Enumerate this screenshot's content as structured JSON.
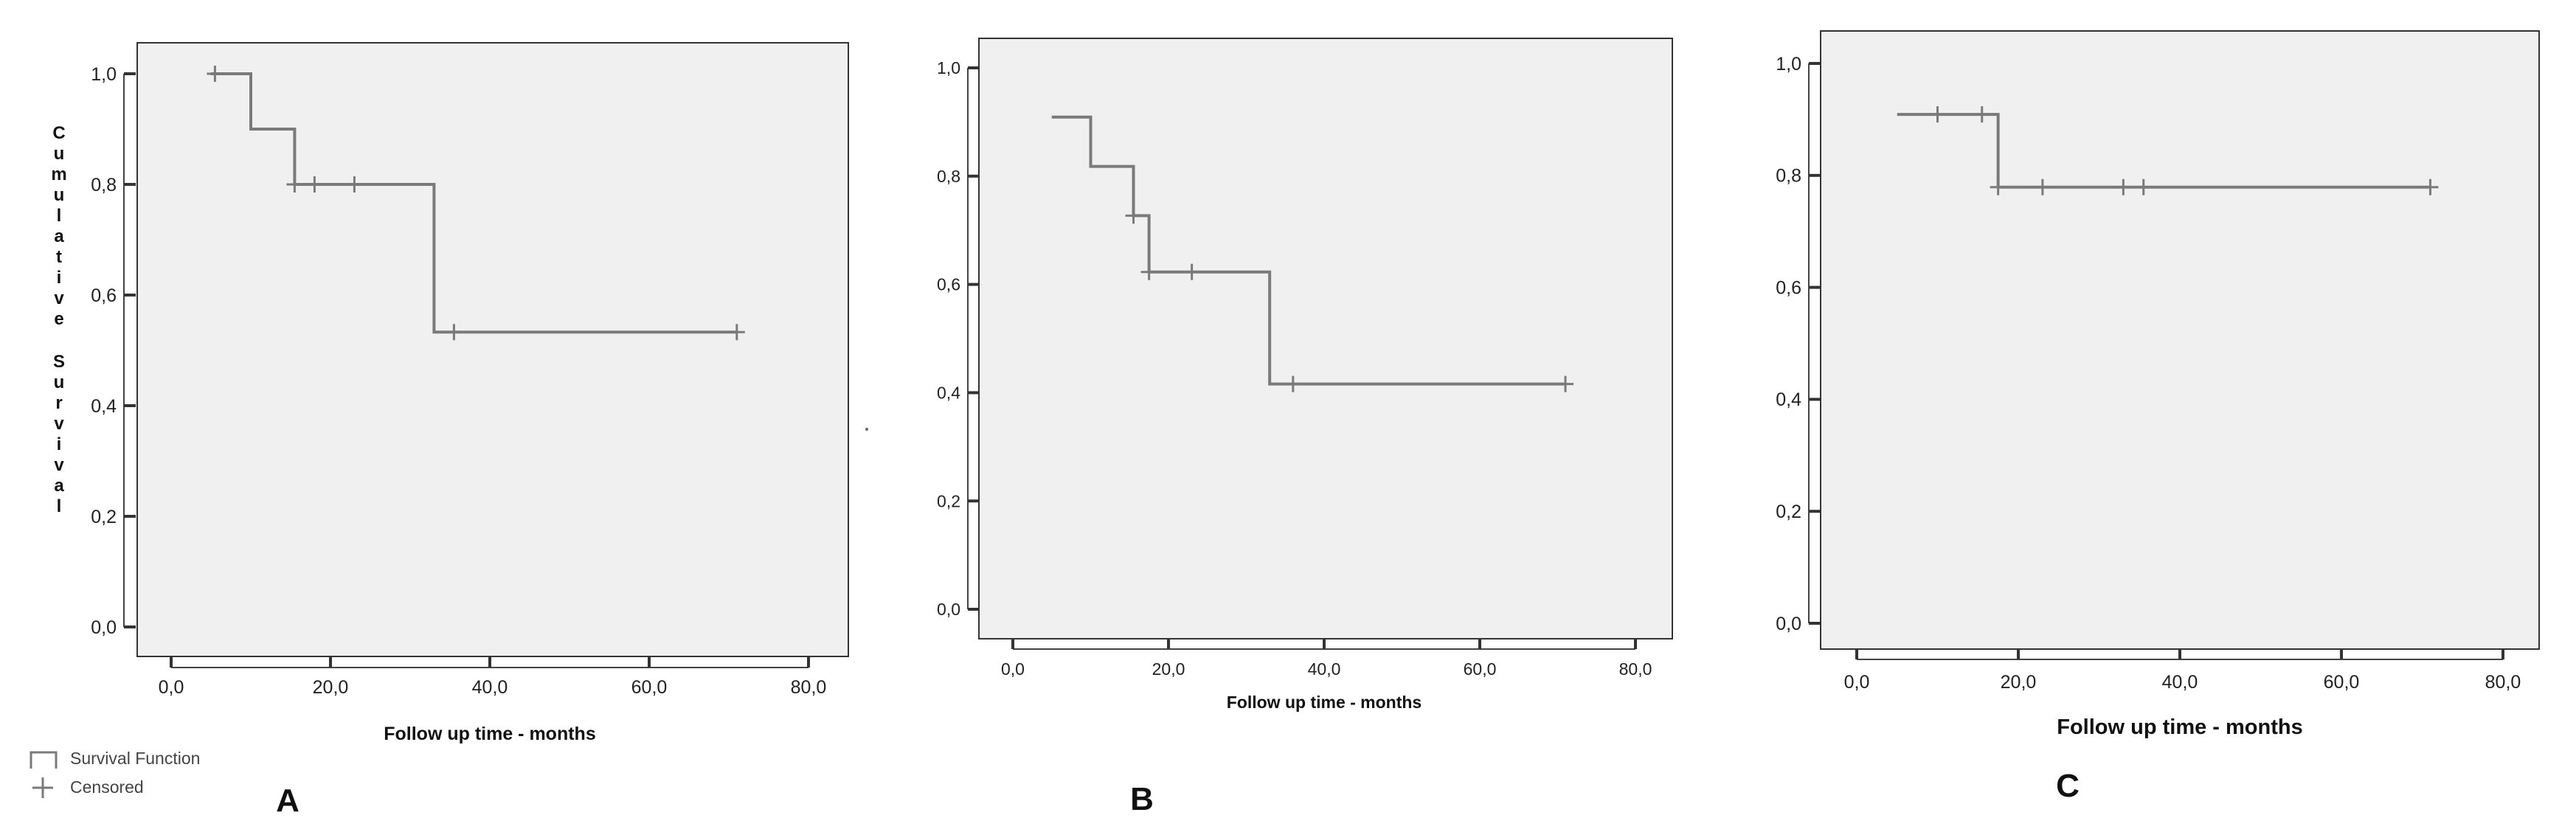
{
  "chart_data": [
    {
      "type": "line",
      "panel_label": "A",
      "xlabel": "Follow up time - months",
      "ylabel": "Cumulative Survival",
      "xlim": [
        0,
        80
      ],
      "ylim": [
        0,
        1
      ],
      "x_tick_labels": [
        "0,0",
        "20,0",
        "40,0",
        "60,0",
        "80,0"
      ],
      "y_tick_labels": [
        "0,0",
        "0,2",
        "0,4",
        "0,6",
        "0,8",
        "1,0"
      ],
      "grid": false,
      "series": [
        {
          "steps": [
            [
              5,
              1.0
            ],
            [
              10,
              0.9
            ],
            [
              15.5,
              0.8
            ],
            [
              33,
              0.533
            ],
            [
              71,
              0.533
            ]
          ],
          "censored": [
            [
              5.5,
              1.0
            ],
            [
              15.5,
              0.8
            ],
            [
              18,
              0.8
            ],
            [
              23,
              0.8
            ],
            [
              35.5,
              0.533
            ],
            [
              71,
              0.533
            ]
          ]
        }
      ]
    },
    {
      "type": "line",
      "panel_label": "B",
      "xlabel": "Follow up time - months",
      "xlim": [
        0,
        80
      ],
      "ylim": [
        0,
        1
      ],
      "x_tick_labels": [
        "0,0",
        "20,0",
        "40,0",
        "60,0",
        "80,0"
      ],
      "y_tick_labels": [
        "0,0",
        "0,2",
        "0,4",
        "0,6",
        "0,8",
        "1,0"
      ],
      "grid": false,
      "series": [
        {
          "steps": [
            [
              5,
              0.909
            ],
            [
              10,
              0.818
            ],
            [
              15.5,
              0.727
            ],
            [
              17.5,
              0.623
            ],
            [
              33,
              0.416
            ],
            [
              71,
              0.416
            ]
          ],
          "censored": [
            [
              15.5,
              0.727
            ],
            [
              17.5,
              0.623
            ],
            [
              23,
              0.623
            ],
            [
              36,
              0.416
            ],
            [
              71,
              0.416
            ]
          ]
        }
      ]
    },
    {
      "type": "line",
      "panel_label": "C",
      "xlabel": "Follow up time - months",
      "xlim": [
        0,
        80
      ],
      "ylim": [
        0,
        1
      ],
      "x_tick_labels": [
        "0,0",
        "20,0",
        "40,0",
        "60,0",
        "80,0"
      ],
      "y_tick_labels": [
        "0,0",
        "0,2",
        "0,4",
        "0,6",
        "0,8",
        "1,0"
      ],
      "grid": false,
      "series": [
        {
          "steps": [
            [
              5,
              0.909
            ],
            [
              17.5,
              0.779
            ],
            [
              71,
              0.779
            ]
          ],
          "censored": [
            [
              10,
              0.909
            ],
            [
              15.5,
              0.909
            ],
            [
              17.5,
              0.779
            ],
            [
              23,
              0.779
            ],
            [
              33,
              0.779
            ],
            [
              35.5,
              0.779
            ],
            [
              71,
              0.779
            ]
          ]
        }
      ]
    }
  ],
  "legend": {
    "items": [
      {
        "label": "Survival Function",
        "icon": "step-line-icon"
      },
      {
        "label": "Censored",
        "icon": "plus-icon"
      }
    ]
  },
  "colors": {
    "plot_background": "#f0f0f0",
    "frame": "#333333",
    "line": "#7a7a7a"
  }
}
